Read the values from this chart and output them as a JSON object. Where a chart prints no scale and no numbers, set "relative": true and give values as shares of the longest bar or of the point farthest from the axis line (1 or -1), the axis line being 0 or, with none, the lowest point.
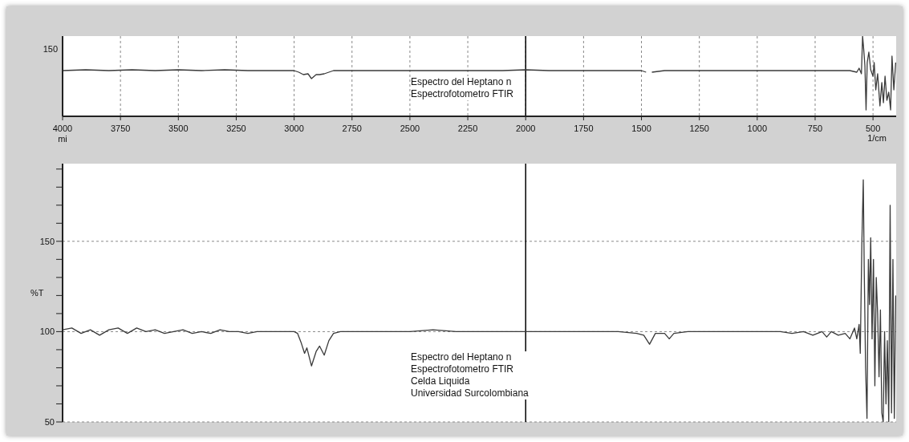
{
  "chart_data": [
    {
      "type": "line",
      "annotations": [
        "Espectro del Heptano n",
        "Espectrofotometro FTIR",
        "150"
      ],
      "xlabel": "1/cm",
      "relative": true,
      "xlim": [
        4000,
        400
      ],
      "xticks": [
        {
          "value": 4000,
          "label": "4000\nmi"
        },
        3750,
        3500,
        3250,
        3000,
        2750,
        2500,
        2250,
        2000,
        1750,
        1500,
        1250,
        1000,
        750,
        500
      ],
      "grid": "x",
      "line_style": "solid",
      "marker": "none",
      "legend": false,
      "ref_lines": [
        {
          "axis": "x",
          "value": 2000,
          "color": "#000000",
          "line_style": "solid"
        }
      ],
      "series": [
        {
          "color": "#3a3a3a",
          "x": [
            4000,
            3900,
            3800,
            3700,
            3600,
            3500,
            3400,
            3300,
            3200,
            3100,
            3000,
            2980,
            2960,
            2940,
            2925,
            2905,
            2890,
            2870,
            2850,
            2830,
            2700,
            2500,
            2300,
            2100,
            2000,
            1900,
            1700,
            1500,
            1480,
            1470,
            1455,
            1400,
            1200,
            1000,
            800,
            600,
            570,
            560,
            550,
            545,
            540,
            535,
            530,
            525,
            518,
            510,
            500,
            495,
            488,
            480,
            470,
            462,
            455,
            448,
            440,
            432,
            424,
            418,
            410,
            402
          ],
          "values": [
            0.57,
            0.58,
            0.57,
            0.58,
            0.57,
            0.58,
            0.57,
            0.58,
            0.57,
            0.57,
            0.57,
            0.55,
            0.52,
            0.53,
            0.47,
            0.52,
            0.52,
            0.53,
            0.55,
            0.57,
            0.57,
            0.57,
            0.57,
            0.57,
            0.58,
            0.57,
            0.57,
            0.57,
            0.55,
            null,
            0.55,
            0.57,
            0.57,
            0.57,
            0.57,
            0.57,
            0.55,
            0.6,
            0.53,
            1,
            0.83,
            0.63,
            0.08,
            0.67,
            0.8,
            0.58,
            0.5,
            0.67,
            0.33,
            0.53,
            0.13,
            0.42,
            0.17,
            0.5,
            0.2,
            0.3,
            0.08,
            0.75,
            0.33,
            0.67
          ]
        }
      ]
    },
    {
      "type": "line",
      "annotations": [
        "Espectro del Heptano n",
        "Espectrofotometro FTIR",
        "Celda Liquida",
        "Universidad Surcolombiana"
      ],
      "ylabel": "%T",
      "xlim": [
        4000,
        400
      ],
      "xticks": [
        4000,
        3750,
        3500,
        3250,
        3000,
        2750,
        2500,
        2250,
        2000,
        1750,
        1500,
        1250,
        1000,
        750,
        500
      ],
      "ylim": [
        50,
        193
      ],
      "yticks": [
        50,
        {
          "value": 60,
          "label": null
        },
        {
          "value": 70,
          "label": null
        },
        {
          "value": 80,
          "label": null
        },
        {
          "value": 90,
          "label": null
        },
        100,
        {
          "value": 110,
          "label": null
        },
        {
          "value": 120,
          "label": null
        },
        {
          "value": 130,
          "label": null
        },
        {
          "value": 140,
          "label": null
        },
        150,
        {
          "value": 160,
          "label": null
        },
        {
          "value": 170,
          "label": null
        },
        {
          "value": 180,
          "label": null
        },
        {
          "value": 190,
          "label": null
        }
      ],
      "tick_labels": "y",
      "grid": true,
      "line_style": "solid",
      "marker": "none",
      "legend": false,
      "ref_lines": [
        {
          "axis": "x",
          "value": 2000,
          "color": "#000000",
          "line_style": "solid"
        }
      ],
      "series": [
        {
          "color": "#3a3a3a",
          "x": [
            4000,
            3960,
            3920,
            3880,
            3840,
            3800,
            3760,
            3720,
            3680,
            3640,
            3600,
            3560,
            3520,
            3480,
            3440,
            3400,
            3360,
            3320,
            3280,
            3240,
            3200,
            3160,
            3120,
            3080,
            3040,
            3000,
            2985,
            2970,
            2955,
            2945,
            2925,
            2905,
            2890,
            2870,
            2850,
            2830,
            2800,
            2700,
            2600,
            2500,
            2400,
            2300,
            2200,
            2100,
            2000,
            1900,
            1800,
            1700,
            1600,
            1520,
            1490,
            1465,
            1440,
            1400,
            1380,
            1360,
            1300,
            1200,
            1100,
            1000,
            900,
            850,
            800,
            760,
            720,
            700,
            680,
            650,
            620,
            600,
            580,
            570,
            560,
            555,
            548,
            542,
            538,
            532,
            526,
            520,
            515,
            510,
            504,
            498,
            492,
            486,
            480,
            474,
            468,
            462,
            456,
            450,
            444,
            438,
            432,
            426,
            420,
            414,
            408,
            402
          ],
          "values": [
            101,
            102,
            99,
            101,
            98,
            101,
            102,
            99,
            102,
            100,
            101,
            99,
            100,
            101,
            99,
            100,
            99,
            101,
            100,
            100,
            99,
            100,
            100,
            100,
            100,
            100,
            99,
            94,
            88,
            91,
            81,
            89,
            92,
            87,
            95,
            99,
            100,
            100,
            100,
            100,
            101,
            100,
            100,
            100,
            100,
            100,
            100,
            100,
            100,
            99,
            98,
            93,
            99,
            99,
            96,
            99,
            100,
            100,
            100,
            100,
            100,
            99,
            100,
            98,
            100,
            97,
            100,
            98,
            99,
            96,
            102,
            96,
            104,
            88,
            150,
            184,
            135,
            80,
            52,
            140,
            115,
            152,
            96,
            140,
            70,
            130,
            110,
            75,
            112,
            55,
            50,
            100,
            60,
            95,
            50,
            170,
            55,
            140,
            52,
            120
          ]
        }
      ]
    }
  ]
}
